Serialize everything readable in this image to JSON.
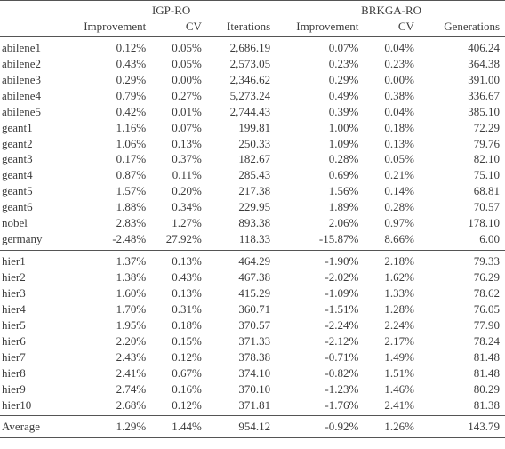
{
  "colors": {
    "text": "#3b3b3b",
    "rule": "#555555",
    "background": "#ffffff"
  },
  "fonts": {
    "family": "Times New Roman serif",
    "base_size_pt": 10
  },
  "groups": {
    "left": "IGP-RO",
    "right": "BRKGA-RO"
  },
  "columns": {
    "name": "",
    "imp1": "Improvement",
    "cv1": "CV",
    "iter": "Iterations",
    "imp2": "Improvement",
    "cv2": "CV",
    "gen": "Generations"
  },
  "sections": [
    {
      "rows": [
        {
          "name": "abilene1",
          "imp1": "0.12%",
          "cv1": "0.05%",
          "iter": "2,686.19",
          "imp2": "0.07%",
          "cv2": "0.04%",
          "gen": "406.24"
        },
        {
          "name": "abilene2",
          "imp1": "0.43%",
          "cv1": "0.05%",
          "iter": "2,573.05",
          "imp2": "0.23%",
          "cv2": "0.23%",
          "gen": "364.38"
        },
        {
          "name": "abilene3",
          "imp1": "0.29%",
          "cv1": "0.00%",
          "iter": "2,346.62",
          "imp2": "0.29%",
          "cv2": "0.00%",
          "gen": "391.00"
        },
        {
          "name": "abilene4",
          "imp1": "0.79%",
          "cv1": "0.27%",
          "iter": "5,273.24",
          "imp2": "0.49%",
          "cv2": "0.38%",
          "gen": "336.67"
        },
        {
          "name": "abilene5",
          "imp1": "0.42%",
          "cv1": "0.01%",
          "iter": "2,744.43",
          "imp2": "0.39%",
          "cv2": "0.04%",
          "gen": "385.10"
        },
        {
          "name": "geant1",
          "imp1": "1.16%",
          "cv1": "0.07%",
          "iter": "199.81",
          "imp2": "1.00%",
          "cv2": "0.18%",
          "gen": "72.29"
        },
        {
          "name": "geant2",
          "imp1": "1.06%",
          "cv1": "0.13%",
          "iter": "250.33",
          "imp2": "1.09%",
          "cv2": "0.13%",
          "gen": "79.76"
        },
        {
          "name": "geant3",
          "imp1": "0.17%",
          "cv1": "0.37%",
          "iter": "182.67",
          "imp2": "0.28%",
          "cv2": "0.05%",
          "gen": "82.10"
        },
        {
          "name": "geant4",
          "imp1": "0.87%",
          "cv1": "0.11%",
          "iter": "285.43",
          "imp2": "0.69%",
          "cv2": "0.21%",
          "gen": "75.10"
        },
        {
          "name": "geant5",
          "imp1": "1.57%",
          "cv1": "0.20%",
          "iter": "217.38",
          "imp2": "1.56%",
          "cv2": "0.14%",
          "gen": "68.81"
        },
        {
          "name": "geant6",
          "imp1": "1.88%",
          "cv1": "0.34%",
          "iter": "229.95",
          "imp2": "1.89%",
          "cv2": "0.28%",
          "gen": "70.57"
        },
        {
          "name": "nobel",
          "imp1": "2.83%",
          "cv1": "1.27%",
          "iter": "893.38",
          "imp2": "2.06%",
          "cv2": "0.97%",
          "gen": "178.10"
        },
        {
          "name": "germany",
          "imp1": "-2.48%",
          "cv1": "27.92%",
          "iter": "118.33",
          "imp2": "-15.87%",
          "cv2": "8.66%",
          "gen": "6.00"
        }
      ]
    },
    {
      "rows": [
        {
          "name": "hier1",
          "imp1": "1.37%",
          "cv1": "0.13%",
          "iter": "464.29",
          "imp2": "-1.90%",
          "cv2": "2.18%",
          "gen": "79.33"
        },
        {
          "name": "hier2",
          "imp1": "1.38%",
          "cv1": "0.43%",
          "iter": "467.38",
          "imp2": "-2.02%",
          "cv2": "1.62%",
          "gen": "76.29"
        },
        {
          "name": "hier3",
          "imp1": "1.60%",
          "cv1": "0.13%",
          "iter": "415.29",
          "imp2": "-1.09%",
          "cv2": "1.33%",
          "gen": "78.62"
        },
        {
          "name": "hier4",
          "imp1": "1.70%",
          "cv1": "0.31%",
          "iter": "360.71",
          "imp2": "-1.51%",
          "cv2": "1.28%",
          "gen": "76.05"
        },
        {
          "name": "hier5",
          "imp1": "1.95%",
          "cv1": "0.18%",
          "iter": "370.57",
          "imp2": "-2.24%",
          "cv2": "2.24%",
          "gen": "77.90"
        },
        {
          "name": "hier6",
          "imp1": "2.20%",
          "cv1": "0.15%",
          "iter": "371.33",
          "imp2": "-2.12%",
          "cv2": "2.17%",
          "gen": "78.24"
        },
        {
          "name": "hier7",
          "imp1": "2.43%",
          "cv1": "0.12%",
          "iter": "378.38",
          "imp2": "-0.71%",
          "cv2": "1.49%",
          "gen": "81.48"
        },
        {
          "name": "hier8",
          "imp1": "2.41%",
          "cv1": "0.67%",
          "iter": "374.10",
          "imp2": "-0.82%",
          "cv2": "1.51%",
          "gen": "81.48"
        },
        {
          "name": "hier9",
          "imp1": "2.74%",
          "cv1": "0.16%",
          "iter": "370.10",
          "imp2": "-1.23%",
          "cv2": "1.46%",
          "gen": "80.29"
        },
        {
          "name": "hier10",
          "imp1": "2.68%",
          "cv1": "0.12%",
          "iter": "371.81",
          "imp2": "-1.76%",
          "cv2": "2.41%",
          "gen": "81.38"
        }
      ]
    }
  ],
  "average": {
    "name": "Average",
    "imp1": "1.29%",
    "cv1": "1.44%",
    "iter": "954.12",
    "imp2": "-0.92%",
    "cv2": "1.26%",
    "gen": "143.79"
  }
}
